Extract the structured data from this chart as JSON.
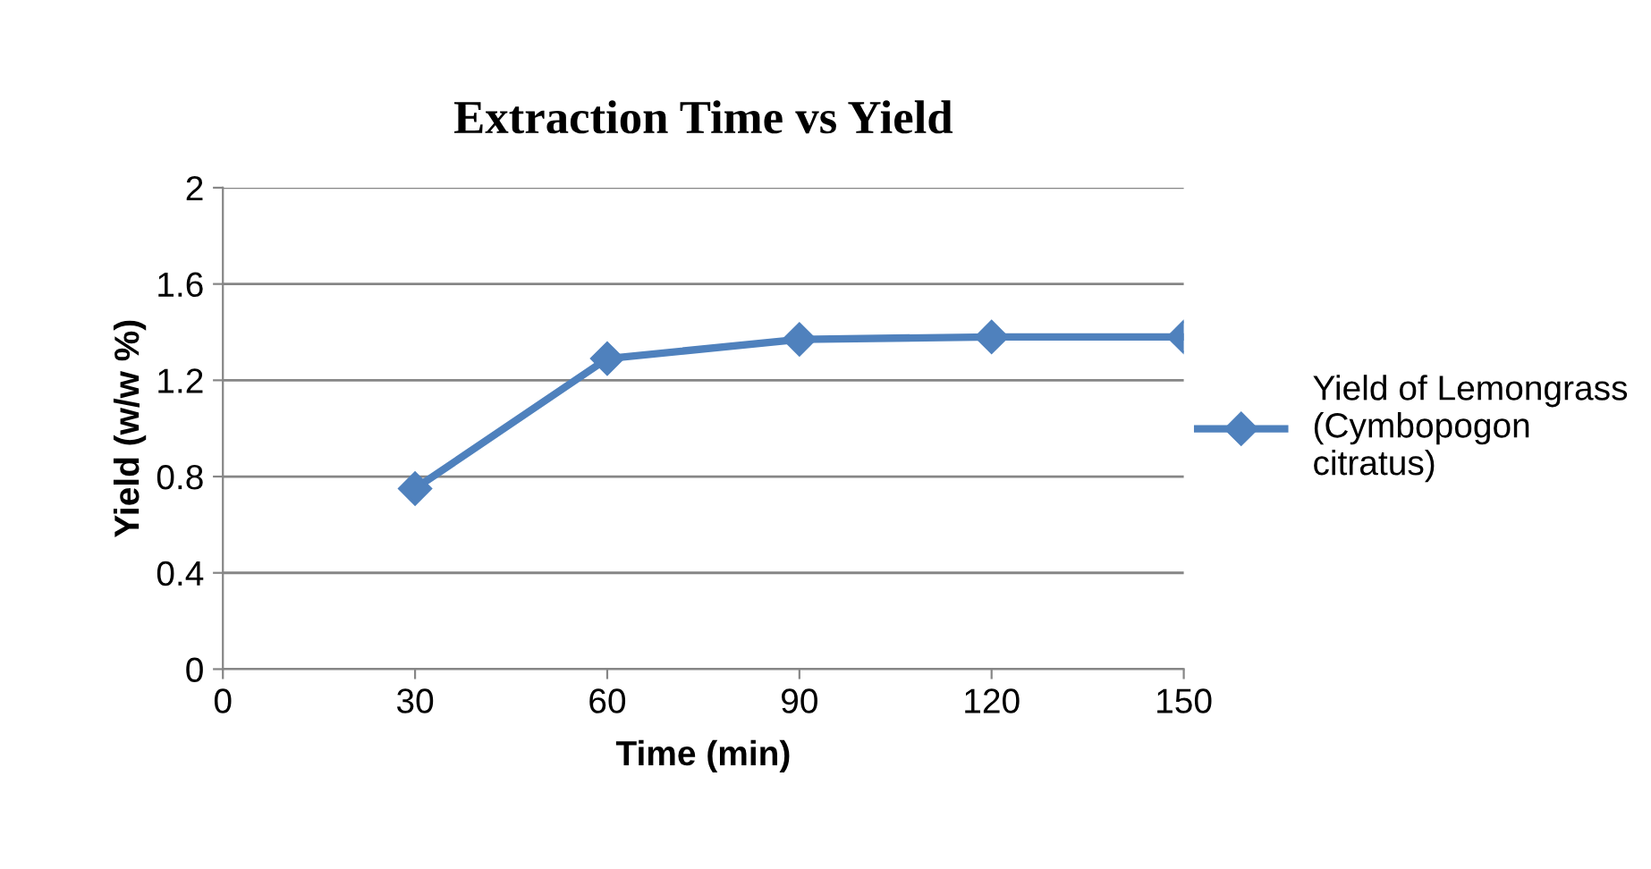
{
  "chart_data": {
    "type": "line",
    "title": "Extraction Time vs Yield",
    "xlabel": "Time (min)",
    "ylabel": "Yield (w/w %)",
    "x": [
      30,
      60,
      90,
      120,
      150
    ],
    "series": [
      {
        "name": "Yield of Lemongrass\n(Cymbopogon\ncitratus)",
        "color": "#4f81bd",
        "values": [
          0.75,
          1.29,
          1.37,
          1.38,
          1.38
        ]
      }
    ],
    "xlim": [
      0,
      150
    ],
    "xticks": [
      0,
      30,
      60,
      90,
      120,
      150
    ],
    "ylim": [
      0,
      2
    ],
    "yticks": [
      0,
      0.4,
      0.8,
      1.2,
      1.6,
      2
    ],
    "grid": "y",
    "legend": "right",
    "marker": "diamond",
    "line_style": "solid"
  }
}
